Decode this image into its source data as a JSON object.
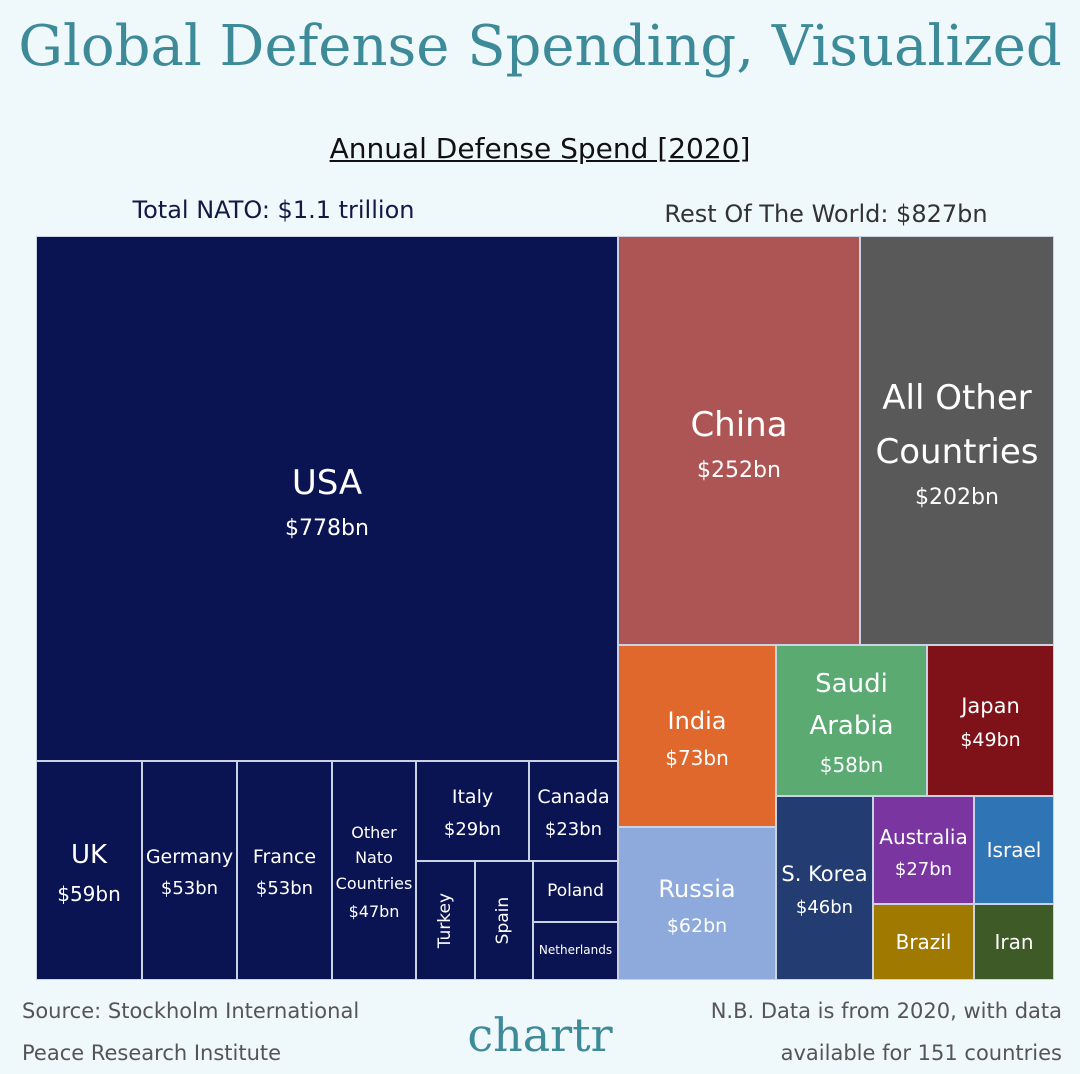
{
  "chart_data": {
    "type": "treemap",
    "title": "Global Defense Spending, Visualized",
    "subtitle": "Annual Defense Spend [2020]",
    "annotations": [
      "Total NATO: $1.1 trillion",
      "Rest Of The World: $827bn"
    ],
    "categories": [
      "USA",
      "China",
      "All Other Countries",
      "India",
      "Saudi Arabia",
      "Japan",
      "Russia",
      "S. Korea",
      "Australia",
      "Israel",
      "Brazil",
      "Iran",
      "UK",
      "Germany",
      "France",
      "Other Nato Countries",
      "Italy",
      "Canada",
      "Turkey",
      "Spain",
      "Poland",
      "Netherlands"
    ],
    "values": [
      778,
      252,
      202,
      73,
      58,
      49,
      62,
      46,
      27,
      22,
      20,
      16,
      59,
      53,
      53,
      47,
      29,
      23,
      18,
      17,
      13,
      13
    ],
    "value_labels": [
      "$778bn",
      "$252bn",
      "$202bn",
      "$73bn",
      "$58bn",
      "$49bn",
      "$62bn",
      "$46bn",
      "$27bn",
      null,
      null,
      null,
      "$59bn",
      "$53bn",
      "$53bn",
      "$47bn",
      "$29bn",
      "$23bn",
      null,
      null,
      null,
      null
    ],
    "colors": [
      "#0b1452",
      "#ad5555",
      "#595959",
      "#e0682c",
      "#5aaa72",
      "#7e1218",
      "#8eaadc",
      "#233d72",
      "#7a35a0",
      "#2f74b5",
      "#a07a00",
      "#3d5a27",
      "#0b1452",
      "#0b1452",
      "#0b1452",
      "#0b1452",
      "#0b1452",
      "#0b1452",
      "#0b1452",
      "#0b1452",
      "#0b1452",
      "#0b1452"
    ]
  },
  "footer": {
    "source": "Source: Stockholm International Peace Research Institute",
    "note": "N.B. Data is from 2020, with data available for 151 countries",
    "brand": "chartr"
  }
}
